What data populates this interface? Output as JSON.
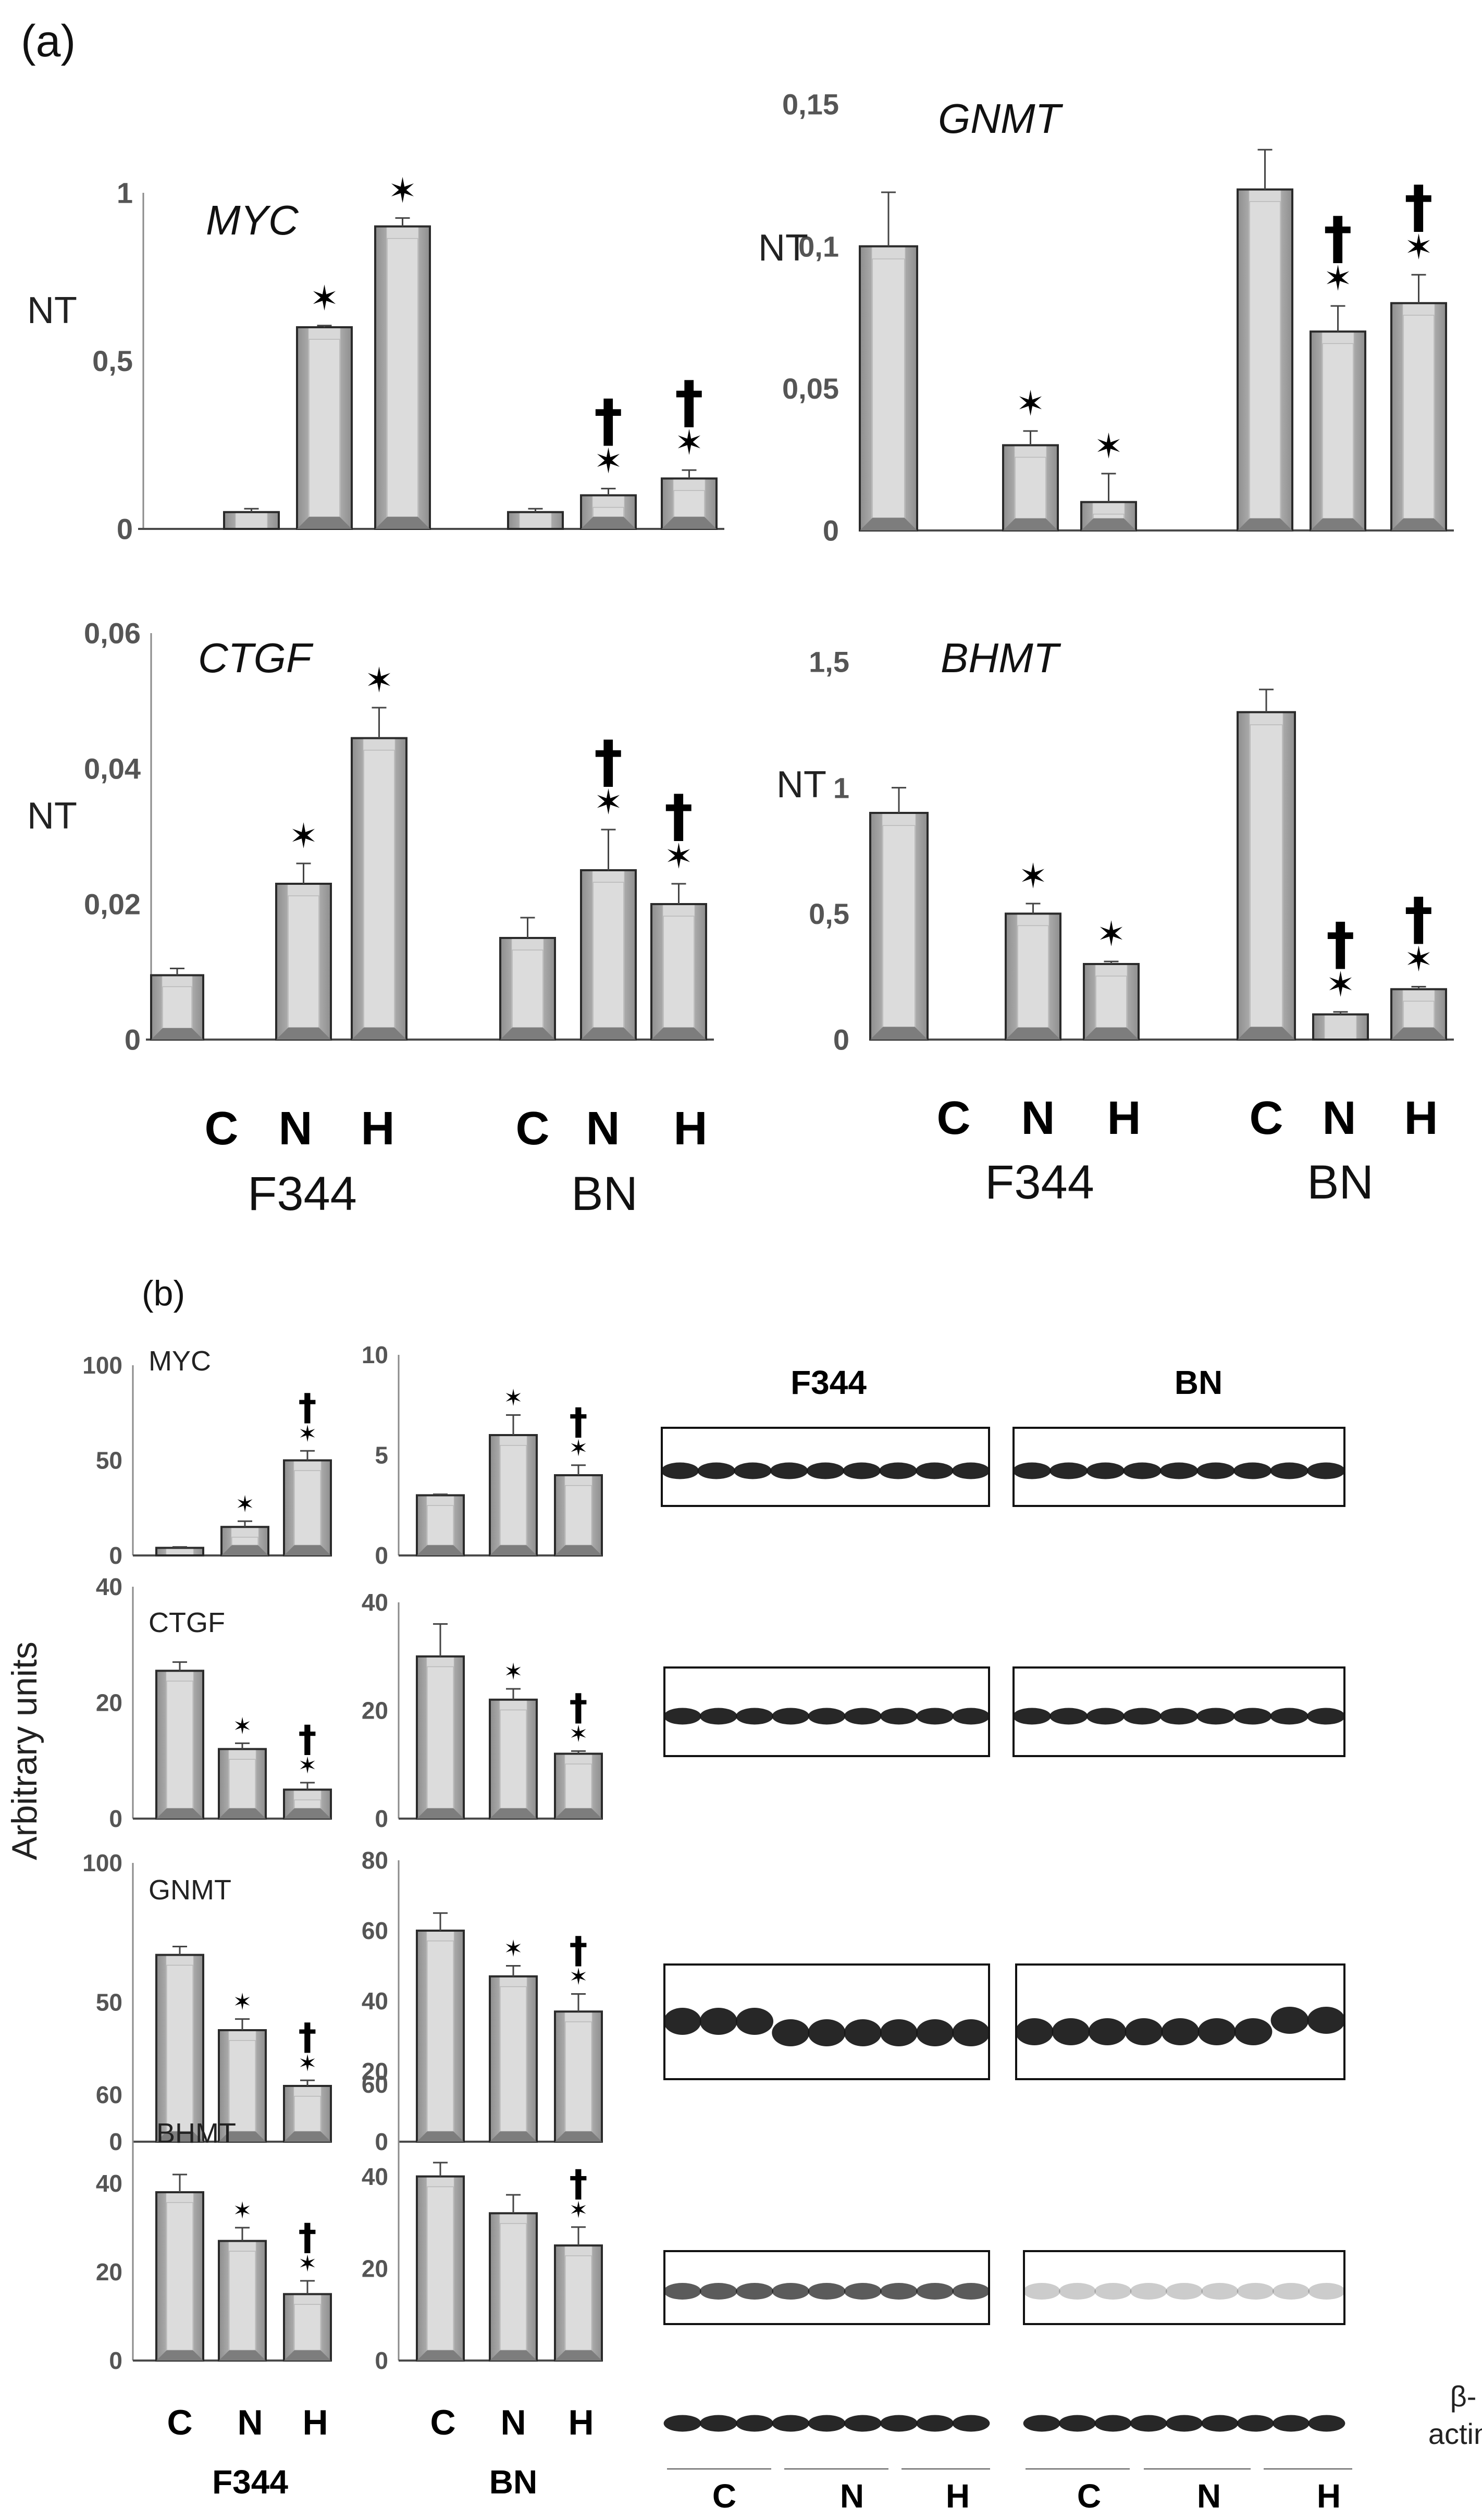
{
  "figure": {
    "panel_a_label": "(a)",
    "panel_b_label": "(b)",
    "strain_f344": "F344",
    "strain_bn": "BN",
    "beta_actin_1": "β-",
    "beta_actin_2": "actin",
    "arbitrary_units": "Arbitrary units",
    "nt_label": "NT",
    "star_symbol": "✶",
    "dagger_symbol": "†"
  },
  "colors": {
    "bar_dark": "#8e8e8e",
    "bar_light": "#d6d6d6",
    "bar_edge": "#2a2a2a",
    "blot_band": "#151515"
  },
  "chart_data": [
    {
      "id": "a-myc",
      "type": "bar",
      "title": "MYC",
      "ylabel": "NT",
      "yticks": [
        "0",
        "0,5",
        "1"
      ],
      "ylim": [
        0,
        1
      ],
      "groups": [
        {
          "name": "F344",
          "categories": [
            "C",
            "N",
            "H"
          ],
          "values": [
            0.05,
            0.6,
            0.9
          ],
          "errors": [
            0.01,
            0.005,
            0.025
          ],
          "stars": [
            false,
            true,
            true
          ],
          "daggers": [
            false,
            false,
            false
          ]
        },
        {
          "name": "BN",
          "categories": [
            "C",
            "N",
            "H"
          ],
          "values": [
            0.05,
            0.1,
            0.15
          ],
          "errors": [
            0.01,
            0.02,
            0.025
          ],
          "stars": [
            false,
            true,
            true
          ],
          "daggers": [
            false,
            true,
            true
          ]
        }
      ]
    },
    {
      "id": "a-gnmt",
      "type": "bar",
      "title": "GNMT",
      "ylabel": "NT",
      "yticks": [
        "0",
        "0,05",
        "0,1",
        "0,15"
      ],
      "ylim": [
        0,
        0.15
      ],
      "groups": [
        {
          "name": "F344",
          "categories": [
            "C",
            "N",
            "H"
          ],
          "values": [
            0.1,
            0.03,
            0.01
          ],
          "errors": [
            0.019,
            0.005,
            0.01
          ],
          "stars": [
            false,
            true,
            true
          ],
          "daggers": [
            false,
            false,
            false
          ]
        },
        {
          "name": "BN",
          "categories": [
            "C",
            "N",
            "H"
          ],
          "values": [
            0.12,
            0.07,
            0.08
          ],
          "errors": [
            0.014,
            0.009,
            0.01
          ],
          "stars": [
            false,
            true,
            true
          ],
          "daggers": [
            false,
            true,
            true
          ]
        }
      ]
    },
    {
      "id": "a-ctgf",
      "type": "bar",
      "title": "CTGF",
      "ylabel": "NT",
      "yticks": [
        "0",
        "0,02",
        "0,04",
        "0,06"
      ],
      "ylim": [
        0,
        0.06
      ],
      "groups": [
        {
          "name": "F344",
          "categories": [
            "C",
            "N",
            "H"
          ],
          "values": [
            0.0095,
            0.023,
            0.0445
          ],
          "errors": [
            0.001,
            0.003,
            0.0045
          ],
          "stars": [
            false,
            true,
            true
          ],
          "daggers": [
            false,
            false,
            false
          ]
        },
        {
          "name": "BN",
          "categories": [
            "C",
            "N",
            "H"
          ],
          "values": [
            0.015,
            0.025,
            0.02
          ],
          "errors": [
            0.003,
            0.006,
            0.003
          ],
          "stars": [
            false,
            true,
            true
          ],
          "daggers": [
            false,
            true,
            true
          ]
        }
      ]
    },
    {
      "id": "a-bhmt",
      "type": "bar",
      "title": "BHMT",
      "ylabel": "NT",
      "yticks": [
        "0",
        "0,5",
        "1",
        "1,5"
      ],
      "ylim": [
        0,
        1.5
      ],
      "groups": [
        {
          "name": "F344",
          "categories": [
            "C",
            "N",
            "H"
          ],
          "values": [
            0.9,
            0.5,
            0.3
          ],
          "errors": [
            0.1,
            0.04,
            0.01
          ],
          "stars": [
            false,
            true,
            true
          ],
          "daggers": [
            false,
            false,
            false
          ]
        },
        {
          "name": "BN",
          "categories": [
            "C",
            "N",
            "H"
          ],
          "values": [
            1.3,
            0.1,
            0.2
          ],
          "errors": [
            0.09,
            0.01,
            0.01
          ],
          "stars": [
            false,
            true,
            true
          ],
          "daggers": [
            false,
            true,
            true
          ]
        }
      ]
    },
    {
      "id": "b-myc-f344",
      "type": "bar",
      "title": "MYC",
      "strain": "F344",
      "yticks": [
        "0",
        "50",
        "100"
      ],
      "ylim": [
        0,
        100
      ],
      "categories": [
        "C",
        "N",
        "H"
      ],
      "values": [
        4,
        15,
        50
      ],
      "errors": [
        0.5,
        3,
        5
      ],
      "stars": [
        false,
        true,
        true
      ],
      "daggers": [
        false,
        false,
        true
      ]
    },
    {
      "id": "b-myc-bn",
      "type": "bar",
      "strain": "BN",
      "yticks": [
        "0",
        "5",
        "10"
      ],
      "ylim": [
        0,
        10
      ],
      "categories": [
        "C",
        "N",
        "H"
      ],
      "values": [
        3,
        6,
        4
      ],
      "errors": [
        0.05,
        1,
        0.5
      ],
      "stars": [
        false,
        true,
        true
      ],
      "daggers": [
        false,
        false,
        true
      ]
    },
    {
      "id": "b-ctgf-f344",
      "type": "bar",
      "title": "CTGF",
      "strain": "F344",
      "yticks": [
        "0",
        "20",
        "40"
      ],
      "ylim": [
        0,
        40
      ],
      "categories": [
        "C",
        "N",
        "H"
      ],
      "values": [
        25.5,
        12,
        5
      ],
      "errors": [
        1.5,
        1,
        1.2
      ],
      "stars": [
        false,
        true,
        true
      ],
      "daggers": [
        false,
        false,
        true
      ]
    },
    {
      "id": "b-ctgf-bn",
      "type": "bar",
      "strain": "BN",
      "yticks": [
        "0",
        "20",
        "40"
      ],
      "ylim": [
        0,
        40
      ],
      "categories": [
        "C",
        "N",
        "H"
      ],
      "values": [
        30,
        22,
        12
      ],
      "errors": [
        6,
        2,
        0.5
      ],
      "stars": [
        false,
        true,
        true
      ],
      "daggers": [
        false,
        false,
        true
      ]
    },
    {
      "id": "b-gnmt-f344",
      "type": "bar",
      "title": "GNMT",
      "strain": "F344",
      "yticks": [
        "0",
        "50",
        "100"
      ],
      "ylim": [
        0,
        100
      ],
      "categories": [
        "C",
        "N",
        "H"
      ],
      "values": [
        67,
        40,
        20
      ],
      "errors": [
        3,
        4,
        2
      ],
      "stars": [
        false,
        true,
        true
      ],
      "daggers": [
        false,
        false,
        true
      ]
    },
    {
      "id": "b-gnmt-bn",
      "type": "bar",
      "strain": "BN",
      "yticks": [
        "0",
        "20",
        "40",
        "60",
        "80"
      ],
      "ylim": [
        0,
        80
      ],
      "categories": [
        "C",
        "N",
        "H"
      ],
      "values": [
        60,
        47,
        37
      ],
      "errors": [
        5,
        3,
        5
      ],
      "stars": [
        false,
        true,
        true
      ],
      "daggers": [
        false,
        false,
        true
      ]
    },
    {
      "id": "b-bhmt-f344",
      "type": "bar",
      "title": "BHMT",
      "strain": "F344",
      "yticks": [
        "0",
        "20",
        "40",
        "60"
      ],
      "ylim": [
        0,
        60
      ],
      "categories": [
        "C",
        "N",
        "H"
      ],
      "values": [
        38,
        27,
        15
      ],
      "errors": [
        4,
        3,
        3
      ],
      "stars": [
        false,
        true,
        true
      ],
      "daggers": [
        false,
        false,
        true
      ]
    },
    {
      "id": "b-bhmt-bn",
      "type": "bar",
      "strain": "BN",
      "yticks": [
        "0",
        "20",
        "40",
        "60"
      ],
      "ylim": [
        0,
        60
      ],
      "categories": [
        "C",
        "N",
        "H"
      ],
      "values": [
        40,
        32,
        25
      ],
      "errors": [
        3,
        4,
        4
      ],
      "stars": [
        false,
        false,
        true
      ],
      "daggers": [
        false,
        false,
        true
      ]
    }
  ],
  "blots": {
    "header_f344": "F344",
    "header_bn": "BN",
    "lane_groups": [
      "C",
      "N",
      "H",
      "C",
      "N",
      "H"
    ]
  }
}
